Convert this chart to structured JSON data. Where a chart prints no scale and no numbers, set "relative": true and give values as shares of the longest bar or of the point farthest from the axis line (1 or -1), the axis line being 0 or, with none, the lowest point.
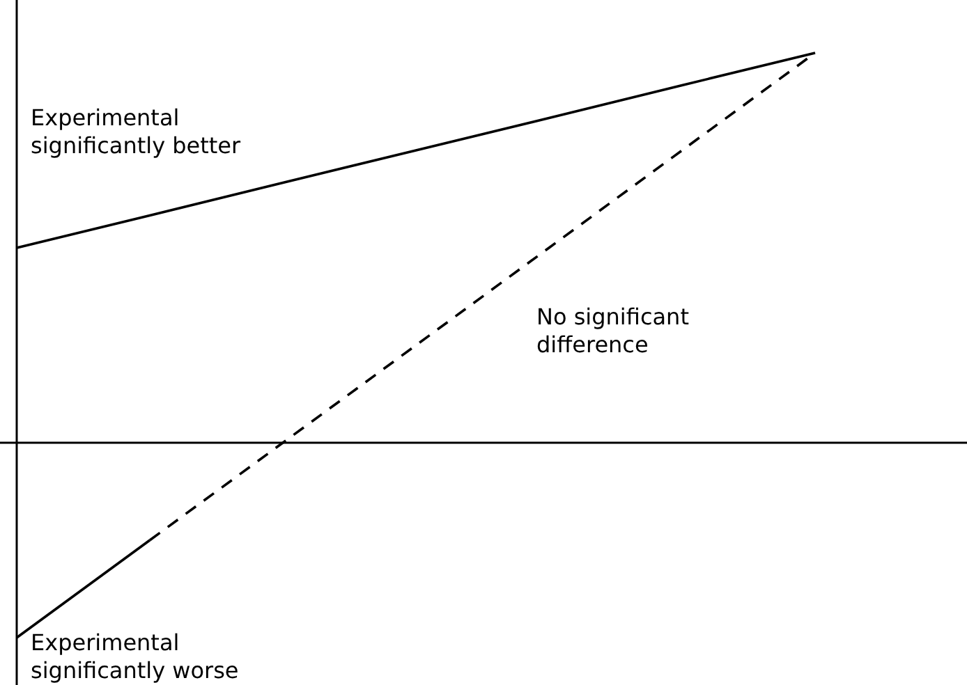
{
  "chart_data": {
    "type": "line",
    "relative": true,
    "categories": [
      null,
      null,
      null,
      null,
      null,
      null,
      null
    ],
    "series": [
      {
        "color": "#000000",
        "line_style": "solid",
        "values": [
          0.5,
          0.583,
          0.667,
          0.75,
          0.833,
          0.917,
          1
        ]
      },
      {
        "color": "#000000",
        "line_style": "solid",
        "values": [
          -0.5,
          -0.25,
          null,
          null,
          null,
          null,
          null
        ]
      },
      {
        "color": "#000000",
        "line_style": "dashed",
        "values": [
          null,
          -0.25,
          0,
          0.25,
          0.5,
          0.75,
          1
        ]
      }
    ],
    "annotations": [
      "Experimental\nsignificantly better",
      "No significant\ndifference",
      "Experimental\nsignificantly worse"
    ]
  }
}
